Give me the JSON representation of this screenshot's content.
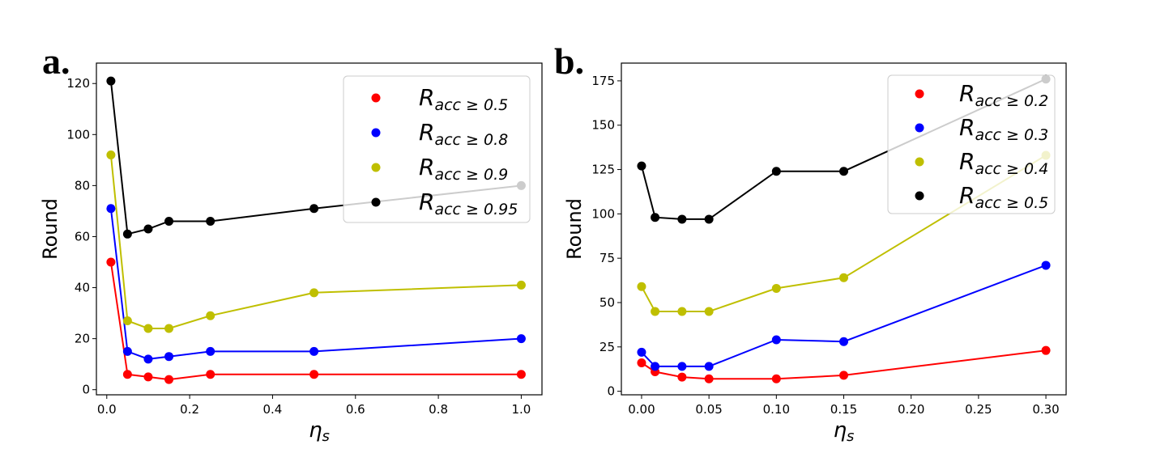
{
  "chart_data": [
    {
      "panel_label": "a.",
      "type": "line",
      "xlabel": "η_s",
      "xlabel_main": "η",
      "xlabel_sub": "s",
      "ylabel": "Round",
      "xlim": [
        -0.025,
        1.05
      ],
      "ylim": [
        -2,
        128
      ],
      "xticks": [
        0.0,
        0.2,
        0.4,
        0.6,
        0.8,
        1.0
      ],
      "xtick_labels": [
        "0.0",
        "0.2",
        "0.4",
        "0.6",
        "0.8",
        "1.0"
      ],
      "yticks": [
        0,
        20,
        40,
        60,
        80,
        100,
        120
      ],
      "ytick_labels": [
        "0",
        "20",
        "40",
        "60",
        "80",
        "100",
        "120"
      ],
      "legend_position": "upper-right",
      "x": [
        0.01,
        0.05,
        0.1,
        0.15,
        0.25,
        0.5,
        1.0
      ],
      "series": [
        {
          "name": "R_acc ≥ 0.5",
          "label_main": "R",
          "label_sub": "acc ≥ 0.5",
          "color": "#ff0000",
          "values": [
            50,
            6,
            5,
            4,
            6,
            6,
            6
          ]
        },
        {
          "name": "R_acc ≥ 0.8",
          "label_main": "R",
          "label_sub": "acc ≥ 0.8",
          "color": "#0000ff",
          "values": [
            71,
            15,
            12,
            13,
            15,
            15,
            20
          ]
        },
        {
          "name": "R_acc ≥ 0.9",
          "label_main": "R",
          "label_sub": "acc ≥ 0.9",
          "color": "#bfbf00",
          "values": [
            92,
            27,
            24,
            24,
            29,
            38,
            41
          ]
        },
        {
          "name": "R_acc ≥ 0.95",
          "label_main": "R",
          "label_sub": "acc ≥ 0.95",
          "color": "#000000",
          "values": [
            121,
            61,
            63,
            66,
            66,
            71,
            80
          ]
        }
      ]
    },
    {
      "panel_label": "b.",
      "type": "line",
      "xlabel": "η_s",
      "xlabel_main": "η",
      "xlabel_sub": "s",
      "ylabel": "Round",
      "xlim": [
        -0.015,
        0.315
      ],
      "ylim": [
        -2,
        185
      ],
      "xticks": [
        0.0,
        0.05,
        0.1,
        0.15,
        0.2,
        0.25,
        0.3
      ],
      "xtick_labels": [
        "0.00",
        "0.05",
        "0.10",
        "0.15",
        "0.20",
        "0.25",
        "0.30"
      ],
      "yticks": [
        0,
        25,
        50,
        75,
        100,
        125,
        150,
        175
      ],
      "ytick_labels": [
        "0",
        "25",
        "50",
        "75",
        "100",
        "125",
        "150",
        "175"
      ],
      "legend_position": "upper-right",
      "x": [
        0.0,
        0.01,
        0.03,
        0.05,
        0.1,
        0.15,
        0.3
      ],
      "series": [
        {
          "name": "R_acc ≥ 0.2",
          "label_main": "R",
          "label_sub": "acc ≥ 0.2",
          "color": "#ff0000",
          "values": [
            16,
            11,
            8,
            7,
            7,
            9,
            23
          ]
        },
        {
          "name": "R_acc ≥ 0.3",
          "label_main": "R",
          "label_sub": "acc ≥ 0.3",
          "color": "#0000ff",
          "values": [
            22,
            14,
            14,
            14,
            29,
            28,
            71
          ]
        },
        {
          "name": "R_acc ≥ 0.4",
          "label_main": "R",
          "label_sub": "acc ≥ 0.4",
          "color": "#bfbf00",
          "values": [
            59,
            45,
            45,
            45,
            58,
            64,
            133
          ]
        },
        {
          "name": "R_acc ≥ 0.5",
          "label_main": "R",
          "label_sub": "acc ≥ 0.5",
          "color": "#000000",
          "values": [
            127,
            98,
            97,
            97,
            124,
            124,
            176
          ]
        }
      ]
    }
  ]
}
